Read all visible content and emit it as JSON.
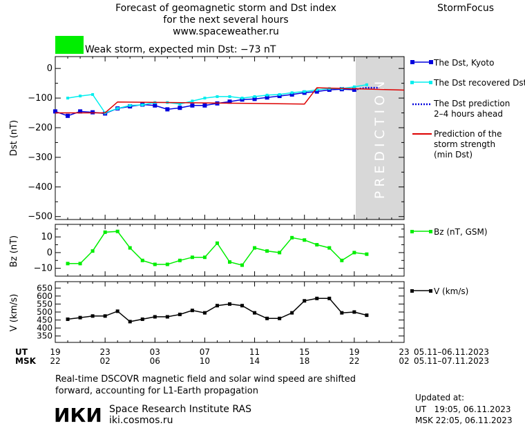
{
  "header": {
    "title_lines": [
      "Forecast of geomagnetic storm and Dst index",
      "for the next several hours",
      "www.spaceweather.ru"
    ],
    "brand": "StormFocus",
    "status_text": "Weak storm, expected min Dst: −73 nT",
    "status_color": "#00ee00"
  },
  "legend": {
    "dst_kyoto": "The Dst, Kyoto",
    "dst_recovered": "The Dst recovered Dst",
    "dst_prediction_lines": [
      "The Dst prediction",
      "2–4 hours ahead"
    ],
    "storm_strength_lines": [
      "Prediction of the",
      "storm strength",
      "(min Dst)"
    ],
    "bz": "Bz (nT, GSM)",
    "v": "V (km/s)"
  },
  "prediction_label": "PREDICTION",
  "time_axis": {
    "ut_label": "UT",
    "msk_label": "MSK",
    "ut_ticks": [
      "19",
      "23",
      "03",
      "07",
      "11",
      "15",
      "19",
      "23"
    ],
    "msk_ticks": [
      "22",
      "02",
      "06",
      "10",
      "14",
      "18",
      "22",
      "02"
    ],
    "ut_range": "05.11–06.11.2023",
    "msk_range": "05.11–07.11.2023"
  },
  "footer": {
    "note_lines": [
      "Real-time DSCOVR magnetic field and solar wind speed are shifted",
      "forward, accounting for L1-Earth propagation"
    ],
    "logo_text": "ИКИ",
    "institute": "Space Research Institute RAS",
    "site": "iki.cosmos.ru",
    "updated_label": "Updated at:",
    "updated_ut": "UT   19:05, 06.11.2023",
    "updated_msk": "MSK 22:05, 06.11.2023"
  },
  "colors": {
    "dst_kyoto": "#0000dd",
    "dst_recovered": "#00eeee",
    "dst_prediction": "#0000dd",
    "storm_strength": "#dd0000",
    "bz": "#00ee00",
    "v": "#000000",
    "prediction_band": "#d8d8d8"
  },
  "chart_data": [
    {
      "type": "line",
      "ylabel": "Dst (nT)",
      "ylim": [
        -510,
        40
      ],
      "yticks": [
        0,
        -100,
        -200,
        -300,
        -400,
        -500
      ],
      "xlim_hours": [
        0,
        28
      ],
      "prediction_start_hour": 24,
      "series": [
        {
          "name": "The Dst, Kyoto",
          "x": [
            0,
            1,
            2,
            3,
            4,
            5,
            6,
            7,
            8,
            9,
            10,
            11,
            12,
            13,
            14,
            15,
            16,
            17,
            18,
            19,
            20,
            21,
            22,
            23,
            24
          ],
          "y": [
            -145,
            -160,
            -145,
            -148,
            -152,
            -135,
            -128,
            -122,
            -125,
            -138,
            -133,
            -125,
            -125,
            -118,
            -112,
            -105,
            -103,
            -98,
            -93,
            -88,
            -82,
            -78,
            -72,
            -70,
            -72
          ]
        },
        {
          "name": "The recovered Dst",
          "x": [
            1,
            2,
            3,
            4,
            5,
            6,
            7,
            8,
            9,
            10,
            11,
            12,
            13,
            14,
            15,
            16,
            17,
            18,
            19,
            20,
            21,
            22,
            23,
            24,
            25
          ],
          "y": [
            -100,
            -93,
            -88,
            -150,
            -135,
            -125,
            -123,
            -115,
            -115,
            -120,
            -110,
            -100,
            -95,
            -95,
            -100,
            -95,
            -90,
            -88,
            -82,
            -78,
            -72,
            -68,
            -68,
            -62,
            -55
          ]
        },
        {
          "name": "The Dst prediction 2–4 hours ahead",
          "x": [
            24,
            24.5,
            25,
            26
          ],
          "y": [
            -72,
            -68,
            -65,
            -65
          ]
        },
        {
          "name": "Prediction of the storm strength (min Dst)",
          "x": [
            0,
            4,
            5,
            20,
            21,
            28
          ],
          "y": [
            -150,
            -150,
            -113,
            -120,
            -65,
            -73
          ]
        }
      ]
    },
    {
      "type": "line",
      "ylabel": "Bz (nT)",
      "ylim": [
        -15,
        18
      ],
      "yticks": [
        10,
        0,
        -10
      ],
      "xlim_hours": [
        0,
        28
      ],
      "series": [
        {
          "name": "Bz (nT, GSM)",
          "x": [
            1,
            2,
            3,
            4,
            5,
            6,
            7,
            8,
            9,
            10,
            11,
            12,
            13,
            14,
            15,
            16,
            17,
            18,
            19,
            20,
            21,
            22,
            23,
            24,
            25
          ],
          "y": [
            -7,
            -7,
            1,
            13,
            13.5,
            3,
            -5,
            -7.5,
            -7.5,
            -5,
            -3,
            -3,
            6,
            -6,
            -8,
            3,
            1,
            0,
            9.5,
            8,
            5,
            3,
            -5,
            0,
            -1
          ]
        }
      ]
    },
    {
      "type": "line",
      "ylabel": "V (km/s)",
      "ylim": [
        310,
        690
      ],
      "yticks": [
        650,
        600,
        550,
        500,
        450,
        400,
        350
      ],
      "ytick_labels": [
        "650",
        "600",
        "550",
        "500",
        "450",
        "400",
        "350"
      ],
      "xlim_hours": [
        0,
        28
      ],
      "series": [
        {
          "name": "V (km/s)",
          "x": [
            1,
            2,
            3,
            4,
            5,
            6,
            7,
            8,
            9,
            10,
            11,
            12,
            13,
            14,
            15,
            16,
            17,
            18,
            19,
            20,
            21,
            22,
            23,
            24,
            25
          ],
          "y": [
            455,
            465,
            475,
            475,
            505,
            440,
            455,
            470,
            470,
            485,
            510,
            495,
            540,
            550,
            540,
            495,
            460,
            460,
            495,
            570,
            585,
            585,
            495,
            500,
            480
          ]
        }
      ]
    }
  ]
}
